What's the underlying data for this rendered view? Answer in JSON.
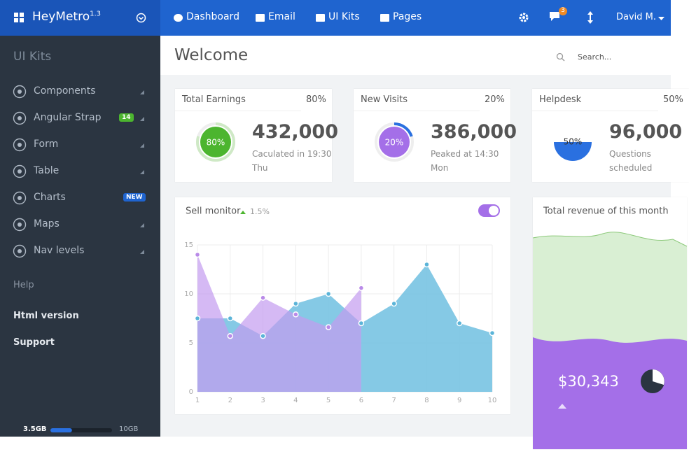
{
  "brand": {
    "name": "HeyMetro",
    "version": "1.3"
  },
  "topnav": {
    "items": [
      "Dashboard",
      "Email",
      "UI Kits",
      "Pages"
    ],
    "notifications": "3",
    "user": "David M."
  },
  "sidebar": {
    "title": "UI Kits",
    "items": [
      {
        "label": "Components",
        "expandable": true
      },
      {
        "label": "Angular Strap",
        "badge": "14",
        "badge_color": "#4cb52f",
        "expandable": true
      },
      {
        "label": "Form",
        "expandable": true
      },
      {
        "label": "Table",
        "expandable": true
      },
      {
        "label": "Charts",
        "badge": "NEW",
        "badge_color": "#1f64cf",
        "expandable": false
      },
      {
        "label": "Maps",
        "expandable": true
      },
      {
        "label": "Nav levels",
        "expandable": true
      }
    ],
    "links": [
      "Help",
      "Html version",
      "Support"
    ],
    "storage": {
      "used": 3.5,
      "used_label": "3.5GB",
      "total": 10,
      "total_label": "10GB"
    }
  },
  "header": {
    "title": "Welcome",
    "search_placeholder": "Search..."
  },
  "stats": [
    {
      "title": "Total Earnings",
      "percent": 80,
      "percent_label": "80%",
      "value": "432,000",
      "note": [
        "Caculated in 19:30",
        "Thu"
      ],
      "style": "ring",
      "color": "#4cb52f",
      "arc_color": "#cfe9c6"
    },
    {
      "title": "New Visits",
      "percent": 20,
      "percent_label": "20%",
      "value": "386,000",
      "note": [
        "Peaked at 14:30",
        "Mon"
      ],
      "style": "ring",
      "color": "#a46fe8",
      "arc_color": "#2a70e0"
    },
    {
      "title": "Helpdesk",
      "percent": 50,
      "percent_label": "50%",
      "value": "96,000",
      "note": [
        "Questions",
        "scheduled"
      ],
      "style": "pie",
      "color": "#2a70e0"
    }
  ],
  "chart_data": {
    "type": "area",
    "title": "Sell monitor",
    "change": "1.5%",
    "x": [
      1,
      2,
      3,
      4,
      5,
      6,
      7,
      8,
      9,
      10
    ],
    "xlim": [
      1,
      10
    ],
    "xticks": [
      1,
      2,
      3,
      4,
      5,
      6,
      7,
      8,
      9,
      10
    ],
    "ylim": [
      0,
      15
    ],
    "yticks": [
      0,
      5,
      10,
      15
    ],
    "grid": true,
    "series": [
      {
        "color": "#7ec6e4",
        "values": [
          7.5,
          7.5,
          5.7,
          9,
          10,
          7,
          9,
          13,
          7,
          6
        ]
      },
      {
        "color": "#c39bf0",
        "values": [
          14,
          5.7,
          9.6,
          7.9,
          6.6,
          10.6,
          null,
          null,
          null,
          null
        ]
      }
    ]
  },
  "revenue": {
    "title": "Total revenue of this month",
    "value": "$30,343"
  }
}
